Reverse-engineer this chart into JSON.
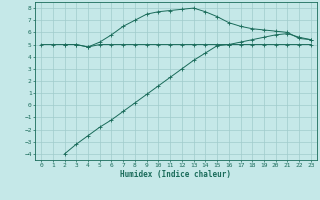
{
  "xlabel": "Humidex (Indice chaleur)",
  "bg_color": "#c5e8e8",
  "grid_color": "#a0cccc",
  "line_color": "#1a6b5a",
  "xlim": [
    -0.5,
    23.5
  ],
  "ylim": [
    -4.5,
    8.5
  ],
  "yticks": [
    -4,
    -3,
    -2,
    -1,
    0,
    1,
    2,
    3,
    4,
    5,
    6,
    7,
    8
  ],
  "xticks": [
    0,
    1,
    2,
    3,
    4,
    5,
    6,
    7,
    8,
    9,
    10,
    11,
    12,
    13,
    14,
    15,
    16,
    17,
    18,
    19,
    20,
    21,
    22,
    23
  ],
  "line1_x": [
    0,
    1,
    2,
    3,
    4,
    5,
    6,
    7,
    8,
    9,
    10,
    11,
    12,
    13,
    14,
    15,
    16,
    17,
    18,
    19,
    20,
    21,
    22,
    23
  ],
  "line1_y": [
    5.0,
    5.0,
    5.0,
    5.0,
    4.8,
    5.0,
    5.0,
    5.0,
    5.0,
    5.0,
    5.0,
    5.0,
    5.0,
    5.0,
    5.0,
    5.0,
    5.0,
    5.0,
    5.0,
    5.0,
    5.0,
    5.0,
    5.0,
    5.0
  ],
  "line2_x": [
    2,
    3,
    4,
    5,
    6,
    7,
    8,
    9,
    10,
    11,
    12,
    13,
    14,
    15,
    16,
    17,
    18,
    19,
    20,
    21,
    22,
    23
  ],
  "line2_y": [
    -4.0,
    -3.2,
    -2.5,
    -1.8,
    -1.2,
    -0.5,
    0.2,
    0.9,
    1.6,
    2.3,
    3.0,
    3.7,
    4.3,
    4.9,
    5.0,
    5.2,
    5.4,
    5.6,
    5.8,
    5.9,
    5.6,
    5.4
  ],
  "line3_x": [
    2,
    3,
    4,
    5,
    6,
    7,
    8,
    9,
    10,
    11,
    12,
    13,
    14,
    15,
    16,
    17,
    18,
    19,
    20,
    21,
    22,
    23
  ],
  "line3_y": [
    5.0,
    5.0,
    4.8,
    5.2,
    5.8,
    6.5,
    7.0,
    7.5,
    7.7,
    7.8,
    7.9,
    8.0,
    7.7,
    7.3,
    6.8,
    6.5,
    6.3,
    6.2,
    6.1,
    6.0,
    5.5,
    5.4
  ]
}
